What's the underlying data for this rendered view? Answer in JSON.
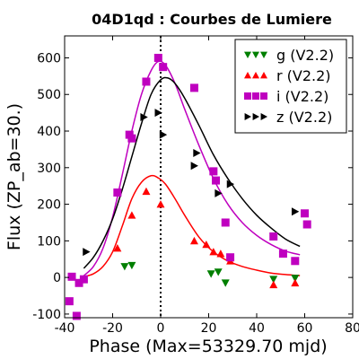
{
  "chart_data": {
    "type": "scatter",
    "title": "04D1qd : Courbes de Lumiere",
    "xlabel": "Phase (Max=53329.70 mjd)",
    "ylabel": "Flux (ZP_ab=30.)",
    "xlim": [
      -40,
      80
    ],
    "ylim": [
      -110,
      660
    ],
    "xticks": [
      -40,
      -20,
      0,
      20,
      40,
      60,
      80
    ],
    "yticks": [
      -100,
      0,
      100,
      200,
      300,
      400,
      500,
      600
    ],
    "max_line_x": 0,
    "legend_position": "upper-right",
    "series": [
      {
        "name": "g (V2.2)",
        "color": "#007f00",
        "marker": "triangle-down",
        "points": [
          {
            "x": -15,
            "y": 30
          },
          {
            "x": -12,
            "y": 33
          },
          {
            "x": 21,
            "y": 10
          },
          {
            "x": 24,
            "y": 15
          },
          {
            "x": 27,
            "y": -15
          },
          {
            "x": 47,
            "y": -5
          },
          {
            "x": 56,
            "y": -2
          }
        ]
      },
      {
        "name": "r (V2.2)",
        "color": "#ff0000",
        "marker": "triangle-up",
        "points": [
          {
            "x": -18,
            "y": 80
          },
          {
            "x": -12,
            "y": 170
          },
          {
            "x": -6,
            "y": 235
          },
          {
            "x": 0,
            "y": 200
          },
          {
            "x": 14,
            "y": 100
          },
          {
            "x": 19,
            "y": 90
          },
          {
            "x": 22,
            "y": 70
          },
          {
            "x": 25,
            "y": 65
          },
          {
            "x": 29,
            "y": 45
          },
          {
            "x": 47,
            "y": -20
          },
          {
            "x": 56,
            "y": -15
          }
        ],
        "model": {
          "x": [
            -32,
            -28,
            -24,
            -20,
            -16,
            -12,
            -8,
            -4,
            -1,
            2,
            6,
            10,
            16,
            22,
            28,
            34,
            40,
            46,
            52,
            58
          ],
          "y": [
            2,
            10,
            30,
            70,
            140,
            215,
            260,
            278,
            272,
            255,
            215,
            170,
            110,
            70,
            45,
            30,
            20,
            12,
            8,
            5
          ]
        }
      },
      {
        "name": "i (V2.2)",
        "color": "#bf00bf",
        "marker": "square",
        "points": [
          {
            "x": -38,
            "y": -65
          },
          {
            "x": -37,
            "y": 2
          },
          {
            "x": -35,
            "y": -105
          },
          {
            "x": -34,
            "y": -15
          },
          {
            "x": -32,
            "y": -5
          },
          {
            "x": -18,
            "y": 232
          },
          {
            "x": -13,
            "y": 390
          },
          {
            "x": -12,
            "y": 380
          },
          {
            "x": -6,
            "y": 535
          },
          {
            "x": -1,
            "y": 600
          },
          {
            "x": 1,
            "y": 575
          },
          {
            "x": 14,
            "y": 518
          },
          {
            "x": 22,
            "y": 290
          },
          {
            "x": 23,
            "y": 265
          },
          {
            "x": 27,
            "y": 150
          },
          {
            "x": 29,
            "y": 55
          },
          {
            "x": 47,
            "y": 112
          },
          {
            "x": 51,
            "y": 65
          },
          {
            "x": 56,
            "y": 45
          },
          {
            "x": 60,
            "y": 175
          },
          {
            "x": 61,
            "y": 145
          }
        ],
        "model": {
          "x": [
            -32,
            -28,
            -24,
            -20,
            -16,
            -12,
            -8,
            -4,
            -1,
            2,
            6,
            10,
            16,
            22,
            28,
            34,
            40,
            46,
            52,
            58
          ],
          "y": [
            5,
            30,
            80,
            165,
            280,
            400,
            500,
            565,
            590,
            580,
            530,
            460,
            360,
            270,
            200,
            150,
            115,
            90,
            72,
            62
          ]
        }
      },
      {
        "name": "z (V2.2)",
        "color": "#000000",
        "marker": "triangle-right",
        "points": [
          {
            "x": -31,
            "y": 70
          },
          {
            "x": -7,
            "y": 438
          },
          {
            "x": -1,
            "y": 450
          },
          {
            "x": 1,
            "y": 390
          },
          {
            "x": 14,
            "y": 305
          },
          {
            "x": 15,
            "y": 340
          },
          {
            "x": 24,
            "y": 230
          },
          {
            "x": 29,
            "y": 255
          },
          {
            "x": 56,
            "y": 180
          }
        ],
        "model": {
          "x": [
            -32,
            -28,
            -24,
            -20,
            -16,
            -12,
            -8,
            -4,
            0,
            3,
            6,
            10,
            16,
            22,
            28,
            34,
            40,
            46,
            52,
            58
          ],
          "y": [
            25,
            55,
            100,
            160,
            240,
            330,
            420,
            500,
            540,
            545,
            530,
            490,
            415,
            335,
            270,
            215,
            170,
            135,
            105,
            85
          ]
        }
      }
    ]
  }
}
